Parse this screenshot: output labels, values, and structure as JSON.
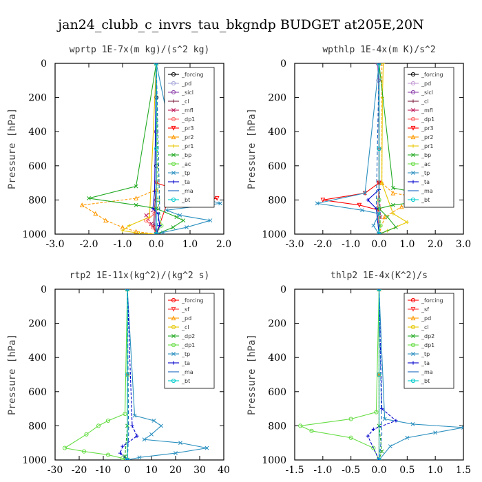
{
  "figure_title": "jan24_clubb_c_invrs_tau_bkgndp  BUDGET at205E,20N",
  "chart_data": [
    {
      "type": "line",
      "title": "wprtp  1E-7x(m kg)/(s^2 kg)",
      "ylabel": "Pressure [hPa]",
      "xlim": [
        -3.0,
        2.0
      ],
      "ylim": [
        1000,
        0
      ],
      "xticks": [
        "-3.0",
        "-2.0",
        "-1.0",
        "0.0",
        "1.0",
        "2.0"
      ],
      "yticks": [
        "0",
        "200",
        "400",
        "600",
        "800",
        "1000"
      ],
      "legend_position": "top-right",
      "series": [
        {
          "name": "_forcing",
          "color": "#000000",
          "marker": "o",
          "x": [
            0,
            0,
            0,
            0,
            0
          ],
          "y": [
            0,
            200,
            400,
            600,
            1000
          ]
        },
        {
          "name": "_pd",
          "color": "#a6a6d9",
          "marker": "o",
          "x": [
            0,
            0,
            0,
            0
          ],
          "y": [
            0,
            400,
            800,
            1000
          ]
        },
        {
          "name": "_sicl",
          "color": "#8e44ad",
          "marker": "o",
          "x": [
            0,
            0,
            0,
            -0.05,
            0
          ],
          "y": [
            0,
            400,
            800,
            950,
            1000
          ]
        },
        {
          "name": "_cl",
          "color": "#7b1e3c",
          "marker": "+",
          "x": [
            0,
            0,
            -0.05,
            -0.08,
            0
          ],
          "y": [
            0,
            700,
            850,
            950,
            1000
          ]
        },
        {
          "name": "_mfl",
          "color": "#c0185a",
          "marker": "x",
          "x": [
            0,
            0,
            -0.3,
            -0.15,
            0
          ],
          "y": [
            0,
            850,
            890,
            940,
            1000
          ]
        },
        {
          "name": "_dp1",
          "color": "#ff6666",
          "marker": "o",
          "x": [
            0,
            0,
            -0.05,
            -0.3,
            -0.1,
            0
          ],
          "y": [
            0,
            850,
            880,
            920,
            960,
            1000
          ]
        },
        {
          "name": "_pr3",
          "color": "#ff0000",
          "marker": "v",
          "x": [
            0,
            0,
            0.9,
            1.8,
            0.3,
            0
          ],
          "y": [
            0,
            700,
            760,
            790,
            830,
            1000
          ]
        },
        {
          "name": "_pr2",
          "color": "#ff9900",
          "marker": "^",
          "x": [
            0,
            0,
            -0.6,
            -2.2,
            -1.8,
            -1.5,
            -1.0,
            -0.6,
            0
          ],
          "y": [
            0,
            740,
            790,
            830,
            880,
            920,
            960,
            985,
            1000
          ]
        },
        {
          "name": "_pr1",
          "color": "#e6c700",
          "marker": "+",
          "x": [
            0,
            -0.2,
            -0.8,
            -1.0,
            -0.5,
            0
          ],
          "y": [
            0,
            900,
            950,
            980,
            995,
            1000
          ]
        },
        {
          "name": "_bp",
          "color": "#22aa22",
          "marker": "x",
          "x": [
            0,
            -0.6,
            -2.0,
            -0.6,
            0,
            0.6,
            0.8,
            0.5,
            0
          ],
          "y": [
            0,
            720,
            790,
            830,
            850,
            900,
            920,
            960,
            1000
          ]
        },
        {
          "name": "_ac",
          "color": "#66dd44",
          "marker": "o",
          "x": [
            0,
            0.05,
            0.15,
            0
          ],
          "y": [
            0,
            800,
            950,
            1000
          ]
        },
        {
          "name": "_tp",
          "color": "#2a8fbf",
          "marker": "x",
          "x": [
            0,
            0.8,
            1.9,
            0.3,
            0.7,
            1.6,
            0.9,
            0.2,
            0
          ],
          "y": [
            0,
            760,
            820,
            860,
            890,
            920,
            960,
            990,
            1000
          ]
        },
        {
          "name": "_ta",
          "color": "#0000cc",
          "marker": "+",
          "x": [
            0,
            -0.05,
            -0.1,
            0.05,
            0.1,
            0
          ],
          "y": [
            0,
            750,
            850,
            880,
            950,
            1000
          ]
        },
        {
          "name": "_ma",
          "color": "#1565c0",
          "marker": "-",
          "x": [
            0,
            0.1,
            0
          ],
          "y": [
            0,
            850,
            1000
          ]
        },
        {
          "name": "_bt",
          "color": "#00cccc",
          "marker": "o",
          "x": [
            0,
            0,
            0
          ],
          "y": [
            0,
            500,
            1000
          ]
        }
      ]
    },
    {
      "type": "line",
      "title": "wpthlp  1E-4x(m K)/s^2",
      "ylabel": "Pressure [hPa]",
      "xlim": [
        -3.0,
        3.0
      ],
      "ylim": [
        1000,
        0
      ],
      "xticks": [
        "-3.0",
        "-2.0",
        "-1.0",
        "0.0",
        "1.0",
        "2.0",
        "3.0"
      ],
      "yticks": [
        "0",
        "200",
        "400",
        "600",
        "800",
        "1000"
      ],
      "legend_position": "top-right",
      "series": [
        {
          "name": "_forcing",
          "color": "#000000",
          "marker": "o",
          "x": [
            0,
            0,
            0
          ],
          "y": [
            0,
            500,
            1000
          ]
        },
        {
          "name": "_pd",
          "color": "#c39bd3",
          "marker": "o",
          "x": [
            0,
            0,
            0
          ],
          "y": [
            0,
            500,
            1000
          ]
        },
        {
          "name": "_sicl",
          "color": "#8e44ad",
          "marker": "o",
          "x": [
            -0.05,
            -0.02,
            0,
            0
          ],
          "y": [
            0,
            100,
            500,
            1000
          ]
        },
        {
          "name": "_cl",
          "color": "#7b1e3c",
          "marker": "+",
          "x": [
            0,
            0,
            0
          ],
          "y": [
            0,
            500,
            1000
          ]
        },
        {
          "name": "_mfl",
          "color": "#c0185a",
          "marker": "x",
          "x": [
            0,
            0,
            0.05,
            0
          ],
          "y": [
            0,
            700,
            900,
            1000
          ]
        },
        {
          "name": "_dp1",
          "color": "#ff6666",
          "marker": "o",
          "x": [
            0,
            0,
            -0.05,
            0
          ],
          "y": [
            0,
            700,
            850,
            1000
          ]
        },
        {
          "name": "_pr3",
          "color": "#ff0000",
          "marker": "v",
          "x": [
            0,
            0,
            -0.5,
            -2.0,
            -0.7,
            0,
            0
          ],
          "y": [
            0,
            700,
            760,
            800,
            830,
            860,
            1000
          ]
        },
        {
          "name": "_pr2",
          "color": "#ff9900",
          "marker": "^",
          "x": [
            0.1,
            0.1,
            0.5,
            2.0,
            0.8,
            0.2,
            0
          ],
          "y": [
            0,
            700,
            760,
            800,
            840,
            900,
            1000
          ]
        },
        {
          "name": "_pr1",
          "color": "#e6c700",
          "marker": "+",
          "x": [
            0.15,
            0.12,
            0.1,
            0.5,
            1.0,
            0.3,
            0
          ],
          "y": [
            0,
            200,
            700,
            880,
            930,
            980,
            1000
          ]
        },
        {
          "name": "_bp",
          "color": "#22aa22",
          "marker": "x",
          "x": [
            0,
            0.5,
            2.4,
            0.5,
            0,
            0.3,
            0.6,
            0
          ],
          "y": [
            0,
            730,
            790,
            830,
            850,
            900,
            960,
            1000
          ]
        },
        {
          "name": "_ac",
          "color": "#66dd44",
          "marker": "o",
          "x": [
            0,
            0,
            0.05,
            0
          ],
          "y": [
            0,
            800,
            950,
            1000
          ]
        },
        {
          "name": "_tp",
          "color": "#2a8fbf",
          "marker": "x",
          "x": [
            0,
            -0.5,
            -2.2,
            -0.6,
            0,
            -0.2,
            0
          ],
          "y": [
            0,
            760,
            820,
            860,
            880,
            950,
            1000
          ]
        },
        {
          "name": "_ta",
          "color": "#0000cc",
          "marker": "+",
          "x": [
            0,
            0,
            -0.4,
            -0.1,
            0
          ],
          "y": [
            0,
            740,
            800,
            850,
            1000
          ]
        },
        {
          "name": "_ma",
          "color": "#1565c0",
          "marker": "-",
          "x": [
            0,
            -0.1,
            0
          ],
          "y": [
            0,
            840,
            1000
          ]
        },
        {
          "name": "_bt",
          "color": "#00cccc",
          "marker": "o",
          "x": [
            0,
            0,
            0
          ],
          "y": [
            0,
            500,
            1000
          ]
        }
      ]
    },
    {
      "type": "line",
      "title": "rtp2  1E-11x(kg^2)/(kg^2 s)",
      "ylabel": "Pressure [hPa]",
      "xlim": [
        -30,
        40
      ],
      "ylim": [
        1000,
        0
      ],
      "xticks": [
        "-30",
        "-20",
        "-10",
        "0",
        "10",
        "20",
        "30",
        "40"
      ],
      "yticks": [
        "0",
        "200",
        "400",
        "600",
        "800",
        "1000"
      ],
      "legend_position": "top-right",
      "series": [
        {
          "name": "_forcing",
          "color": "#ff0000",
          "marker": "o",
          "x": [
            0,
            0,
            0
          ],
          "y": [
            0,
            500,
            1000
          ]
        },
        {
          "name": "_sf",
          "color": "#ff3333",
          "marker": "v",
          "x": [
            0,
            0,
            0
          ],
          "y": [
            0,
            500,
            1000
          ]
        },
        {
          "name": "_pd",
          "color": "#ff9900",
          "marker": "^",
          "x": [
            0,
            0,
            0
          ],
          "y": [
            0,
            500,
            1000
          ]
        },
        {
          "name": "_cl",
          "color": "#e6c700",
          "marker": "o",
          "x": [
            0,
            0,
            0
          ],
          "y": [
            0,
            500,
            1000
          ]
        },
        {
          "name": "_dp2",
          "color": "#22aa22",
          "marker": "x",
          "x": [
            0,
            0,
            -1,
            0
          ],
          "y": [
            0,
            800,
            980,
            1000
          ]
        },
        {
          "name": "_dp1",
          "color": "#66dd44",
          "marker": "o",
          "x": [
            0,
            -1,
            -8,
            -12,
            -17,
            -26,
            -18,
            -8,
            -2,
            0
          ],
          "y": [
            0,
            730,
            770,
            800,
            850,
            930,
            950,
            970,
            990,
            1000
          ]
        },
        {
          "name": "_tp",
          "color": "#2a8fbf",
          "marker": "x",
          "x": [
            0,
            3,
            11,
            14,
            10,
            7,
            22,
            33,
            20,
            5,
            0
          ],
          "y": [
            0,
            740,
            770,
            800,
            850,
            880,
            900,
            930,
            960,
            985,
            1000
          ]
        },
        {
          "name": "_ta",
          "color": "#0000cc",
          "marker": "+",
          "x": [
            0,
            2,
            4,
            -2,
            -3,
            0
          ],
          "y": [
            0,
            800,
            860,
            920,
            960,
            1000
          ]
        },
        {
          "name": "_ma",
          "color": "#1565c0",
          "marker": "-",
          "x": [
            0,
            0.5,
            0
          ],
          "y": [
            0,
            850,
            1000
          ]
        },
        {
          "name": "_bt",
          "color": "#00cccc",
          "marker": "o",
          "x": [
            0,
            0,
            0
          ],
          "y": [
            0,
            500,
            1000
          ]
        }
      ]
    },
    {
      "type": "line",
      "title": "thlp2  1E-4x(K^2)/s",
      "ylabel": "Pressure [hPa]",
      "xlim": [
        -1.5,
        1.5
      ],
      "ylim": [
        1000,
        0
      ],
      "xticks": [
        "-1.5",
        "-1.0",
        "-0.5",
        "0.0",
        "0.5",
        "1.0",
        "1.5"
      ],
      "yticks": [
        "0",
        "200",
        "400",
        "600",
        "800",
        "1000"
      ],
      "legend_position": "top-right",
      "series": [
        {
          "name": "_forcing",
          "color": "#ff0000",
          "marker": "o",
          "x": [
            0,
            0,
            0
          ],
          "y": [
            0,
            500,
            1000
          ]
        },
        {
          "name": "_sf",
          "color": "#ff3333",
          "marker": "v",
          "x": [
            0,
            0,
            0
          ],
          "y": [
            0,
            500,
            1000
          ]
        },
        {
          "name": "_pd",
          "color": "#ff9900",
          "marker": "^",
          "x": [
            0,
            0,
            0
          ],
          "y": [
            0,
            500,
            1000
          ]
        },
        {
          "name": "_cl",
          "color": "#e6c700",
          "marker": "o",
          "x": [
            0,
            0,
            0
          ],
          "y": [
            0,
            500,
            1000
          ]
        },
        {
          "name": "_dp2",
          "color": "#22aa22",
          "marker": "x",
          "x": [
            0,
            0,
            0.05,
            0
          ],
          "y": [
            0,
            800,
            950,
            1000
          ]
        },
        {
          "name": "_dp1",
          "color": "#66dd44",
          "marker": "o",
          "x": [
            0,
            -0.05,
            -0.5,
            -1.4,
            -1.2,
            -0.5,
            -0.1,
            0
          ],
          "y": [
            0,
            720,
            760,
            800,
            830,
            870,
            930,
            1000
          ]
        },
        {
          "name": "_tp",
          "color": "#2a8fbf",
          "marker": "x",
          "x": [
            0,
            0.1,
            0.6,
            1.5,
            1.0,
            0.5,
            0.2,
            0
          ],
          "y": [
            0,
            760,
            790,
            810,
            840,
            870,
            920,
            1000
          ]
        },
        {
          "name": "_ta",
          "color": "#0000cc",
          "marker": "+",
          "x": [
            0,
            0.05,
            0.3,
            -0.1,
            -0.2,
            0
          ],
          "y": [
            0,
            700,
            770,
            820,
            860,
            1000
          ]
        },
        {
          "name": "_ma",
          "color": "#1565c0",
          "marker": "-",
          "x": [
            0,
            0.05,
            0
          ],
          "y": [
            0,
            850,
            1000
          ]
        },
        {
          "name": "_bt",
          "color": "#00cccc",
          "marker": "o",
          "x": [
            0,
            0,
            0
          ],
          "y": [
            0,
            500,
            1000
          ]
        }
      ]
    }
  ]
}
